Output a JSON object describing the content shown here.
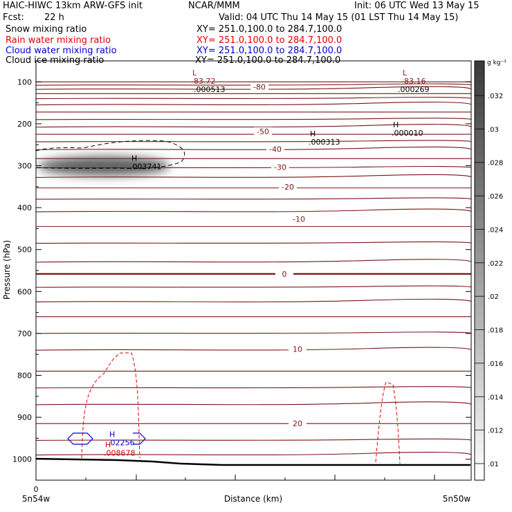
{
  "header": {
    "model": "HAIC-HIWC 13km ARW-GFS init",
    "org": "NCAR/MMM",
    "init": "Init: 06 UTC Wed 13 May 15",
    "fcst_label": "Fcst:",
    "fcst_value": "22 h",
    "valid": "Valid: 04 UTC Thu 14 May 15 (01 LST Thu 14 May 15)",
    "fields": [
      {
        "name": "Snow mixing ratio",
        "xy": "XY= 251.0,100.0 to 284.7,100.0",
        "color": "#000000"
      },
      {
        "name": "Rain water mixing ratio",
        "xy": "XY= 251.0,100.0 to 284.7,100.0",
        "color": "#e00000"
      },
      {
        "name": "Cloud water mixing ratio",
        "xy": "XY= 251.0,100.0 to 284.7,100.0",
        "color": "#0000cc"
      },
      {
        "name": "Cloud ice mixing ratio",
        "xy": "XY= 251.0,100.0 to 284.7,100.0",
        "color": "#000000"
      }
    ]
  },
  "chart_data": {
    "type": "contour-cross-section",
    "ylabel": "Pressure (hPa)",
    "xlabel": "Distance (km)",
    "x_start_label": "5n54w",
    "x_end_label": "5n50w",
    "x_origin_label": "0",
    "yticks": [
      100,
      200,
      300,
      400,
      500,
      600,
      700,
      800,
      900,
      1000
    ],
    "ylim": [
      50,
      1050
    ],
    "colorbar": {
      "unit": "g kg⁻¹",
      "ticks": [
        ".032",
        ".03",
        ".028",
        ".026",
        ".024",
        ".022",
        ".02",
        ".018",
        ".016",
        ".014",
        ".012",
        ".01"
      ]
    },
    "temperature_labels": [
      {
        "value": "-80",
        "p": 112
      },
      {
        "value": "-50",
        "p": 218
      },
      {
        "value": "-40",
        "p": 260
      },
      {
        "value": "-30",
        "p": 303
      },
      {
        "value": "-20",
        "p": 350
      },
      {
        "value": "-10",
        "p": 427
      },
      {
        "value": "0",
        "p": 558
      },
      {
        "value": "10",
        "p": 737
      },
      {
        "value": "20",
        "p": 915
      }
    ],
    "extrema_labels": [
      {
        "mark": "L",
        "value": "-83.72",
        "color": "#8b1a1a",
        "p": 98
      },
      {
        "mark": "",
        "value": ".000513",
        "color": "#000000",
        "p": 118
      },
      {
        "mark": "L",
        "value": "-83.16",
        "color": "#8b1a1a",
        "p": 98
      },
      {
        "mark": "",
        "value": ".000269",
        "color": "#000000",
        "p": 118
      },
      {
        "mark": "H",
        "value": ".000313",
        "color": "#000000",
        "p": 243
      },
      {
        "mark": "H",
        "value": ".000010",
        "color": "#000000",
        "p": 222
      },
      {
        "mark": "H",
        "value": ".003741",
        "color": "#000000",
        "p": 302
      },
      {
        "mark": "H",
        "value": ".02256",
        "color": "#0000cc",
        "p": 960
      },
      {
        "mark": "H",
        "value": ".008678",
        "color": "#e00000",
        "p": 985
      }
    ]
  }
}
